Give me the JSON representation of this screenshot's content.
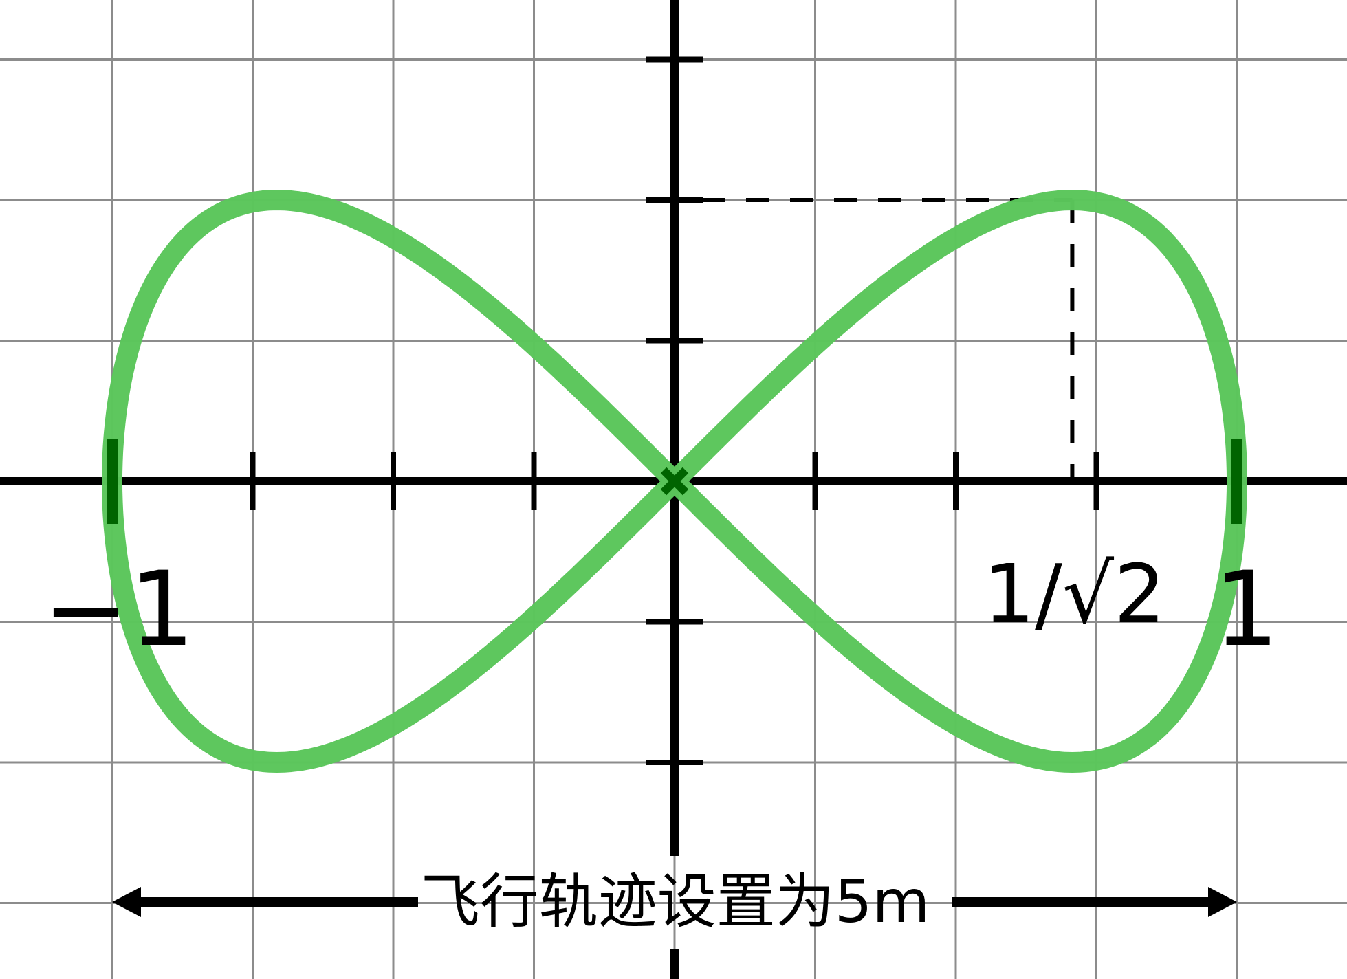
{
  "diagram": {
    "curve_name": "lemniscate-figure-eight",
    "colors": {
      "curve": "#5bc65b",
      "curve_marks": "#006400",
      "axes": "#000000",
      "grid": "#8c8c8c",
      "background": "#ffffff"
    },
    "x_range": [
      -1.25,
      1.25
    ],
    "y_range": [
      -0.9,
      0.85
    ],
    "grid_step": 0.25,
    "curve_amplitude_y": 0.5,
    "x_ticks": [
      -0.75,
      -0.5,
      -0.25,
      0.25,
      0.5,
      0.75
    ],
    "y_ticks": [
      -0.5,
      -0.25,
      0.25,
      0.5,
      0.75
    ],
    "special_x": 0.7071,
    "labels": {
      "minus_one": "−1",
      "one": "1",
      "inv_sqrt2": "1/√2"
    },
    "caption": "飞行轨迹设置为5m"
  }
}
